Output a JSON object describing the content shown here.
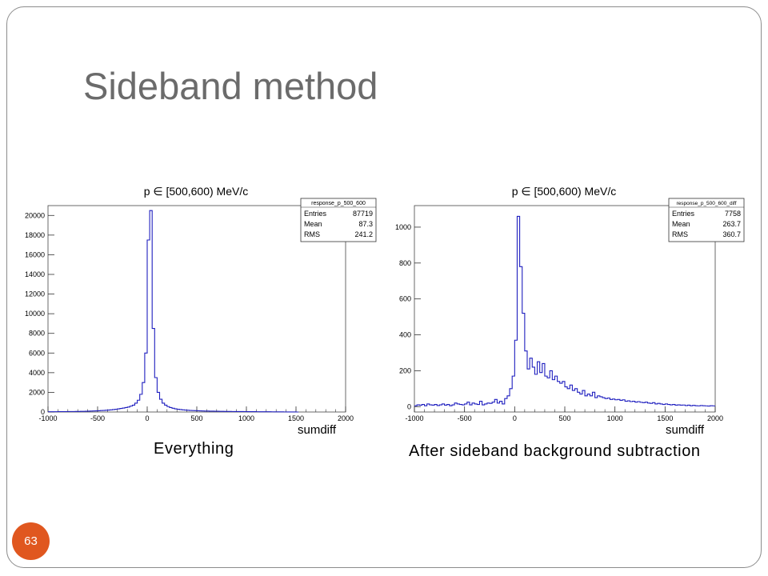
{
  "slide": {
    "title": "Sideband method",
    "page_number": "63",
    "captions": [
      "Everything",
      "After sideband background subtraction"
    ],
    "accent_color": "#e0571f"
  },
  "chart_data": [
    {
      "type": "histogram",
      "title": "p ∈ [500,600) MeV/c",
      "xlabel": "sumdiff",
      "ylabel": "",
      "xlim": [
        -1000,
        2000
      ],
      "ylim": [
        0,
        21000
      ],
      "xticks": [
        -1000,
        -500,
        0,
        500,
        1000,
        1500,
        2000
      ],
      "yticks": [
        0,
        2000,
        4000,
        6000,
        8000,
        10000,
        12000,
        14000,
        16000,
        18000,
        20000
      ],
      "line_color": "#1f1fbf",
      "stats_box": {
        "name": "response_p_500_600",
        "rows": [
          {
            "label": "Entries",
            "value": "87719"
          },
          {
            "label": "Mean",
            "value": "87.3"
          },
          {
            "label": "RMS",
            "value": "241.2"
          }
        ]
      },
      "bins": {
        "x": [
          -1000,
          -975,
          -950,
          -925,
          -900,
          -875,
          -850,
          -825,
          -800,
          -775,
          -750,
          -725,
          -700,
          -675,
          -650,
          -625,
          -600,
          -575,
          -550,
          -525,
          -500,
          -475,
          -450,
          -425,
          -400,
          -375,
          -350,
          -325,
          -300,
          -275,
          -250,
          -225,
          -200,
          -175,
          -150,
          -125,
          -100,
          -75,
          -50,
          -25,
          0,
          25,
          50,
          75,
          100,
          125,
          150,
          175,
          200,
          225,
          250,
          275,
          300,
          325,
          350,
          375,
          400,
          425,
          450,
          475,
          500,
          525,
          550,
          575,
          600,
          625,
          650,
          675,
          700,
          725,
          750,
          775,
          800,
          825,
          850,
          875,
          900,
          925,
          950,
          975,
          1000,
          1025,
          1050,
          1075,
          1100,
          1125,
          1150,
          1175,
          1200,
          1225,
          1250,
          1275,
          1300,
          1325,
          1350,
          1375,
          1400,
          1425,
          1450,
          1475,
          1500
        ],
        "values": [
          30,
          30,
          30,
          30,
          40,
          40,
          40,
          40,
          50,
          50,
          50,
          60,
          60,
          70,
          70,
          80,
          90,
          100,
          110,
          120,
          130,
          150,
          160,
          180,
          200,
          220,
          250,
          280,
          320,
          360,
          400,
          450,
          500,
          600,
          700,
          900,
          1200,
          1800,
          3000,
          6000,
          17500,
          20500,
          8500,
          3500,
          2000,
          1300,
          900,
          700,
          550,
          450,
          380,
          320,
          280,
          250,
          220,
          200,
          180,
          160,
          150,
          140,
          130,
          120,
          110,
          100,
          95,
          90,
          85,
          80,
          75,
          70,
          65,
          60,
          55,
          52,
          50,
          48,
          46,
          44,
          42,
          40,
          38,
          36,
          34,
          32,
          30,
          28,
          26,
          25,
          24,
          22,
          20,
          18,
          16,
          14,
          12,
          10,
          8,
          6,
          4,
          2,
          0
        ]
      }
    },
    {
      "type": "histogram",
      "title": "p ∈ [500,600) MeV/c",
      "xlabel": "sumdiff",
      "ylabel": "",
      "xlim": [
        -1000,
        2000
      ],
      "ylim": [
        -30,
        1120
      ],
      "xticks": [
        -1000,
        -500,
        0,
        500,
        1000,
        1500,
        2000
      ],
      "yticks": [
        0,
        200,
        400,
        600,
        800,
        1000
      ],
      "line_color": "#1f1fbf",
      "stats_box": {
        "name": "response_p_500_600_diff",
        "rows": [
          {
            "label": "Entries",
            "value": "7758"
          },
          {
            "label": "Mean",
            "value": "263.7"
          },
          {
            "label": "RMS",
            "value": "360.7"
          }
        ]
      },
      "bins": {
        "x": [
          -1000,
          -975,
          -950,
          -925,
          -900,
          -875,
          -850,
          -825,
          -800,
          -775,
          -750,
          -725,
          -700,
          -675,
          -650,
          -625,
          -600,
          -575,
          -550,
          -525,
          -500,
          -475,
          -450,
          -425,
          -400,
          -375,
          -350,
          -325,
          -300,
          -275,
          -250,
          -225,
          -200,
          -175,
          -150,
          -125,
          -100,
          -75,
          -50,
          -25,
          0,
          25,
          50,
          75,
          100,
          125,
          150,
          175,
          200,
          225,
          250,
          275,
          300,
          325,
          350,
          375,
          400,
          425,
          450,
          475,
          500,
          525,
          550,
          575,
          600,
          625,
          650,
          675,
          700,
          725,
          750,
          775,
          800,
          825,
          850,
          875,
          900,
          925,
          950,
          975,
          1000,
          1025,
          1050,
          1075,
          1100,
          1125,
          1150,
          1175,
          1200,
          1225,
          1250,
          1275,
          1300,
          1325,
          1350,
          1375,
          1400,
          1425,
          1450,
          1475,
          1500,
          1525,
          1550,
          1575,
          1600,
          1625,
          1650,
          1675,
          1700,
          1725,
          1750,
          1775,
          1800,
          1825,
          1850,
          1875,
          1900,
          1925,
          1950,
          1975
        ],
        "values": [
          5,
          10,
          8,
          12,
          5,
          15,
          10,
          8,
          12,
          6,
          10,
          15,
          8,
          12,
          5,
          10,
          20,
          15,
          12,
          10,
          15,
          25,
          10,
          20,
          15,
          12,
          30,
          10,
          15,
          20,
          18,
          25,
          40,
          20,
          30,
          15,
          45,
          60,
          100,
          170,
          370,
          1060,
          780,
          520,
          310,
          210,
          270,
          220,
          180,
          250,
          190,
          240,
          170,
          160,
          200,
          150,
          170,
          140,
          130,
          140,
          110,
          100,
          120,
          90,
          100,
          80,
          70,
          90,
          60,
          70,
          60,
          80,
          50,
          60,
          55,
          50,
          45,
          48,
          40,
          42,
          38,
          40,
          35,
          38,
          30,
          32,
          28,
          30,
          25,
          28,
          24,
          22,
          25,
          20,
          18,
          22,
          15,
          18,
          15,
          12,
          15,
          12,
          10,
          12,
          8,
          10,
          8,
          9,
          6,
          8,
          5,
          7,
          5,
          4,
          6,
          5,
          4,
          3,
          5,
          4
        ]
      }
    }
  ]
}
